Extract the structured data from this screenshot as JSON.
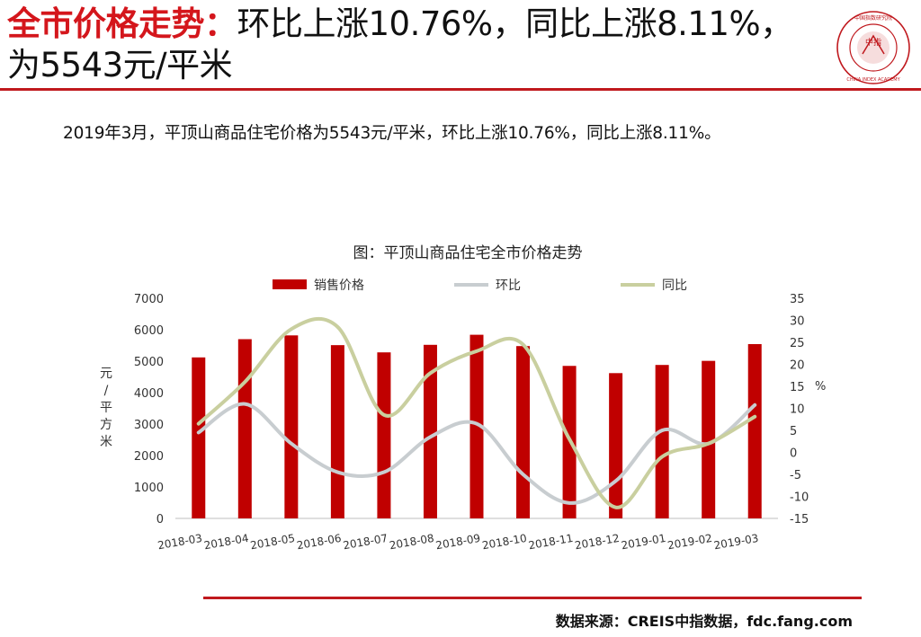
{
  "header": {
    "title_highlight": "全市价格走势：",
    "title_rest": "环比上涨10.76%，同比上涨8.11%，为5543元/平米"
  },
  "logo": {
    "center_text": "中指",
    "ring_text": "CHINA INDEX ACADEMY",
    "top_text": "中国指数研究院",
    "color": "#c0191e"
  },
  "summary": "2019年3月，平顶山商品住宅价格为5543元/平米，环比上涨10.76%，同比上涨8.11%。",
  "chart_data": {
    "type": "bar",
    "title": "图：平顶山商品住宅全市价格走势",
    "categories": [
      "2018-03",
      "2018-04",
      "2018-05",
      "2018-06",
      "2018-07",
      "2018-08",
      "2018-09",
      "2018-10",
      "2018-11",
      "2018-12",
      "2019-01",
      "2019-02",
      "2019-03"
    ],
    "series": [
      {
        "name": "销售价格",
        "type": "bar",
        "axis": "left",
        "color": "#c00000",
        "values": [
          5120,
          5700,
          5820,
          5510,
          5280,
          5520,
          5840,
          5480,
          4850,
          4620,
          4880,
          5010,
          5543
        ]
      },
      {
        "name": "环比",
        "type": "line",
        "axis": "right",
        "color": "#c8cdd0",
        "values": [
          4.5,
          11,
          2,
          -4.5,
          -4.5,
          3.5,
          6.5,
          -5,
          -11.5,
          -6.5,
          5,
          2,
          10.76
        ]
      },
      {
        "name": "同比",
        "type": "line",
        "axis": "right",
        "color": "#c9cf9f",
        "values": [
          6.5,
          16,
          28,
          28.5,
          8.5,
          18,
          23,
          24.5,
          3,
          -12.5,
          -1,
          2,
          8.11
        ]
      }
    ],
    "left_axis": {
      "label": "元/平方米",
      "ylim": [
        0,
        7000
      ],
      "ticks": [
        0,
        1000,
        2000,
        3000,
        4000,
        5000,
        6000,
        7000
      ]
    },
    "right_axis": {
      "label": "%",
      "ylim": [
        -15,
        35
      ],
      "ticks": [
        -15,
        -10,
        -5,
        0,
        5,
        10,
        15,
        20,
        25,
        30,
        35
      ]
    },
    "legend_position": "top",
    "grid": false
  },
  "footer": {
    "source": "数据来源：CREIS中指数据，fdc.fang.com"
  }
}
